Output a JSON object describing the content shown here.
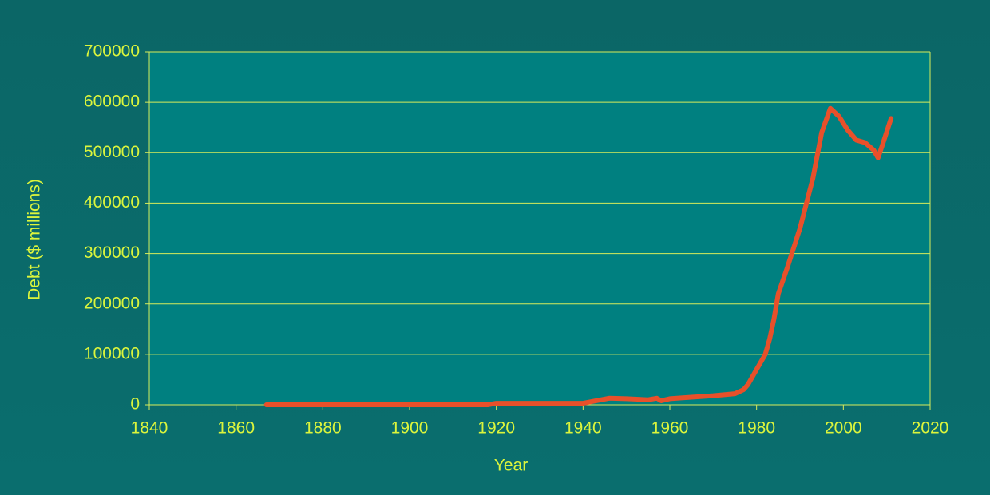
{
  "chart_data": {
    "type": "line",
    "x_label": "Year",
    "y_label": "Debt ($ millions)",
    "x": [
      1867,
      1900,
      1918,
      1920,
      1940,
      1946,
      1950,
      1955,
      1957,
      1958,
      1960,
      1965,
      1970,
      1975,
      1977,
      1978,
      1980,
      1982,
      1983,
      1984,
      1985,
      1987,
      1990,
      1993,
      1995,
      1997,
      1999,
      2001,
      2003,
      2005,
      2007,
      2008,
      2009,
      2011
    ],
    "series": [
      {
        "color": "#e8502a",
        "values": [
          0,
          0,
          0,
          3000,
          3000,
          13000,
          12000,
          10000,
          13000,
          8000,
          12000,
          15000,
          18000,
          22000,
          30000,
          40000,
          70000,
          100000,
          130000,
          170000,
          220000,
          270000,
          350000,
          450000,
          540000,
          588000,
          572000,
          545000,
          525000,
          520000,
          505000,
          490000,
          515000,
          568000
        ]
      }
    ],
    "xlim": [
      1840,
      2020
    ],
    "xticks": [
      1840,
      1860,
      1880,
      1900,
      1920,
      1940,
      1960,
      1980,
      2000,
      2020
    ],
    "ylim": [
      0,
      700000
    ],
    "yticks": [
      0,
      100000,
      200000,
      300000,
      400000,
      500000,
      600000,
      700000
    ],
    "grid": true
  }
}
